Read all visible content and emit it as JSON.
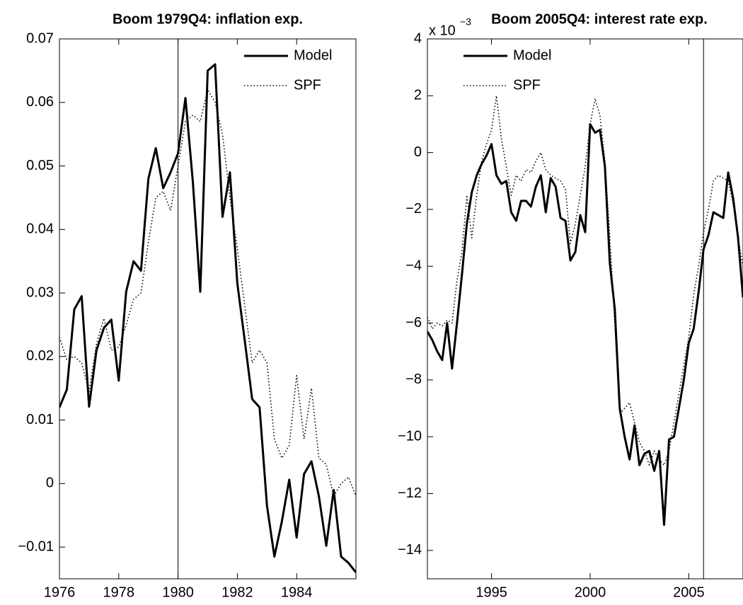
{
  "chart_data": [
    {
      "type": "line",
      "title": "Boom 1979Q4: inflation exp.",
      "x": [
        1976,
        1976.25,
        1976.5,
        1976.75,
        1977,
        1977.25,
        1977.5,
        1977.75,
        1978,
        1978.25,
        1978.5,
        1978.75,
        1979,
        1979.25,
        1979.5,
        1979.75,
        1980,
        1980.25,
        1980.5,
        1980.75,
        1981,
        1981.25,
        1981.5,
        1981.75,
        1982,
        1982.25,
        1982.5,
        1982.75,
        1983,
        1983.25,
        1983.5,
        1983.75,
        1984,
        1984.25,
        1984.5,
        1984.75,
        1985,
        1985.25,
        1985.5,
        1985.75,
        1986
      ],
      "series": [
        {
          "name": "Model",
          "color": "#000000",
          "style": "solid",
          "values": [
            0.012,
            0.0148,
            0.0274,
            0.0295,
            0.0121,
            0.021,
            0.0245,
            0.0258,
            0.0162,
            0.0302,
            0.035,
            0.0335,
            0.048,
            0.0528,
            0.0465,
            0.049,
            0.052,
            0.0607,
            0.0475,
            0.0302,
            0.065,
            0.066,
            0.042,
            0.049,
            0.0315,
            0.0225,
            0.0133,
            0.012,
            -0.0035,
            -0.0115,
            -0.006,
            0.0006,
            -0.0085,
            0.0015,
            0.0035,
            -0.002,
            -0.0098,
            -0.001,
            -0.0115,
            -0.0125,
            -0.014
          ]
        },
        {
          "name": "SPF",
          "color": "#000000",
          "style": "dotted",
          "values": [
            0.023,
            0.0195,
            0.02,
            0.019,
            0.0145,
            0.022,
            0.026,
            0.021,
            0.0215,
            0.025,
            0.029,
            0.03,
            0.038,
            0.045,
            0.046,
            0.043,
            0.05,
            0.057,
            0.058,
            0.057,
            0.062,
            0.06,
            0.055,
            0.045,
            0.037,
            0.028,
            0.019,
            0.021,
            0.019,
            0.007,
            0.004,
            0.006,
            0.017,
            0.007,
            0.015,
            0.004,
            0.003,
            -0.002,
            0.0,
            0.001,
            -0.002
          ]
        }
      ],
      "xlim": [
        1976,
        1986
      ],
      "xticks": [
        1976,
        1978,
        1980,
        1982,
        1984
      ],
      "ylim": [
        -0.015,
        0.07
      ],
      "yticks": [
        {
          "value": -0.01,
          "label": "−0.01"
        },
        0,
        0.01,
        0.02,
        0.03,
        0.04,
        0.05,
        0.06,
        0.07
      ],
      "vline": 1980,
      "legend": "upper right",
      "grid": false
    },
    {
      "type": "line",
      "title": "Boom 2005Q4: interest rate exp.",
      "multiplier": "x 10",
      "multiplier_exponent": "−3",
      "x": [
        1991.75,
        1992,
        1992.25,
        1992.5,
        1992.75,
        1993,
        1993.25,
        1993.5,
        1993.75,
        1994,
        1994.25,
        1994.5,
        1994.75,
        1995,
        1995.25,
        1995.5,
        1995.75,
        1996,
        1996.25,
        1996.5,
        1996.75,
        1997,
        1997.25,
        1997.5,
        1997.75,
        1998,
        1998.25,
        1998.5,
        1998.75,
        1999,
        1999.25,
        1999.5,
        1999.75,
        2000,
        2000.25,
        2000.5,
        2000.75,
        2001,
        2001.25,
        2001.5,
        2001.75,
        2002,
        2002.25,
        2002.5,
        2002.75,
        2003,
        2003.25,
        2003.5,
        2003.75,
        2004,
        2004.25,
        2004.5,
        2004.75,
        2005,
        2005.25,
        2005.5,
        2005.75,
        2006,
        2006.25,
        2006.5,
        2006.75,
        2007,
        2007.25,
        2007.5,
        2007.75
      ],
      "series": [
        {
          "name": "Model",
          "color": "#000000",
          "style": "solid",
          "values": [
            -6.3,
            -6.6,
            -7.0,
            -7.3,
            -6.0,
            -7.6,
            -6.0,
            -4.3,
            -2.5,
            -1.4,
            -0.8,
            -0.4,
            -0.1,
            0.3,
            -0.8,
            -1.1,
            -1.0,
            -2.1,
            -2.4,
            -1.7,
            -1.7,
            -1.9,
            -1.2,
            -0.8,
            -2.1,
            -0.9,
            -1.2,
            -2.3,
            -2.4,
            -3.8,
            -3.5,
            -2.2,
            -2.8,
            1.0,
            0.7,
            0.8,
            -0.5,
            -3.9,
            -5.5,
            -9.0,
            -10.0,
            -10.8,
            -9.6,
            -11.0,
            -10.6,
            -10.5,
            -11.2,
            -10.5,
            -13.1,
            -10.1,
            -10.0,
            -9.0,
            -8.0,
            -6.7,
            -6.2,
            -4.9,
            -3.4,
            -2.9,
            -2.1,
            -2.2,
            -2.3,
            -0.7,
            -1.6,
            -3.0,
            -5.1
          ]
        },
        {
          "name": "SPF",
          "color": "#000000",
          "style": "dotted",
          "values": [
            -5.8,
            -6.2,
            -6.0,
            -6.1,
            -5.9,
            -6.0,
            -4.5,
            -3.5,
            -1.5,
            -3.0,
            -1.5,
            -0.3,
            0.3,
            0.8,
            2.0,
            0.5,
            -0.5,
            -1.5,
            -0.8,
            -1.0,
            -0.6,
            -0.7,
            -0.3,
            0.0,
            -0.6,
            -0.8,
            -0.9,
            -1.0,
            -1.3,
            -3.2,
            -2.5,
            -1.5,
            -0.5,
            1.0,
            1.9,
            1.3,
            -0.3,
            -3.0,
            -6.0,
            -9.2,
            -9.0,
            -8.8,
            -9.5,
            -10.2,
            -10.5,
            -11.0,
            -10.5,
            -10.8,
            -11.0,
            -10.5,
            -9.5,
            -8.5,
            -7.5,
            -6.5,
            -5.0,
            -4.0,
            -2.8,
            -2.0,
            -1.0,
            -0.8,
            -0.9,
            -1.0,
            -1.8,
            -3.0,
            -4.0
          ]
        }
      ],
      "xlim": [
        1991.75,
        2007.75
      ],
      "xticks": [
        1995,
        2000,
        2005
      ],
      "ylim": [
        -15,
        4
      ],
      "yticks": [
        {
          "value": -14,
          "label": "−14"
        },
        {
          "value": -12,
          "label": "−12"
        },
        {
          "value": -10,
          "label": "−10"
        },
        {
          "value": -8,
          "label": "−8"
        },
        {
          "value": -6,
          "label": "−6"
        },
        {
          "value": -4,
          "label": "−4"
        },
        {
          "value": -2,
          "label": "−2"
        },
        0,
        2,
        4
      ],
      "vline": 2005.75,
      "legend": "upper left",
      "grid": false
    }
  ]
}
